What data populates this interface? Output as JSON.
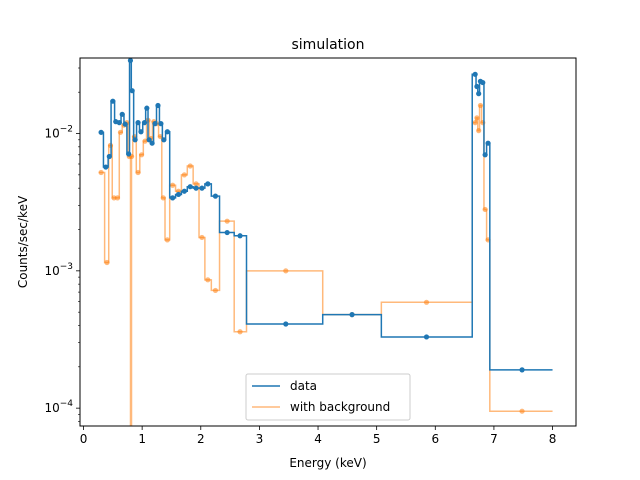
{
  "chart_data": {
    "type": "line",
    "title": "simulation",
    "xlabel": "Energy (keV)",
    "ylabel": "Counts/sec/keV",
    "xlim": [
      -0.06,
      8.4
    ],
    "ylim_log10": [
      -4.13,
      -1.45
    ],
    "x_ticks": [
      0,
      1,
      2,
      3,
      4,
      5,
      6,
      7,
      8
    ],
    "x_tick_labels": [
      "0",
      "1",
      "2",
      "3",
      "4",
      "5",
      "6",
      "7",
      "8"
    ],
    "y_ticks": [
      0.0001,
      0.001,
      0.01
    ],
    "y_tick_labels": [
      "10",
      "10",
      "10"
    ],
    "y_tick_exponents": [
      "−4",
      "−3",
      "−2"
    ],
    "legend": {
      "position": "lower-center",
      "entries": [
        "data",
        "with background"
      ]
    },
    "series": [
      {
        "name": "data",
        "color": "#1f77b4",
        "points": [
          [
            0.3,
            0.0102
          ],
          [
            0.38,
            0.0057
          ],
          [
            0.44,
            0.0068
          ],
          [
            0.5,
            0.0172
          ],
          [
            0.55,
            0.0122
          ],
          [
            0.61,
            0.012
          ],
          [
            0.66,
            0.0138
          ],
          [
            0.71,
            0.0117
          ],
          [
            0.77,
            0.0071
          ],
          [
            0.8,
            0.034
          ],
          [
            0.83,
            0.0205
          ],
          [
            0.88,
            0.009
          ],
          [
            0.93,
            0.012
          ],
          [
            0.98,
            0.0103
          ],
          [
            1.04,
            0.012
          ],
          [
            1.08,
            0.0153
          ],
          [
            1.12,
            0.009
          ],
          [
            1.17,
            0.0085
          ],
          [
            1.22,
            0.0118
          ],
          [
            1.27,
            0.016
          ],
          [
            1.32,
            0.0118
          ],
          [
            1.37,
            0.009
          ],
          [
            1.43,
            0.0103
          ],
          [
            1.52,
            0.0034
          ],
          [
            1.62,
            0.0036
          ],
          [
            1.72,
            0.0038
          ],
          [
            1.82,
            0.0041
          ],
          [
            1.92,
            0.004
          ],
          [
            2.02,
            0.004
          ],
          [
            2.12,
            0.0043
          ],
          [
            2.25,
            0.0035
          ],
          [
            2.45,
            0.0019
          ],
          [
            2.67,
            0.0018
          ],
          [
            3.45,
            0.00041
          ],
          [
            4.58,
            0.00048
          ],
          [
            5.85,
            0.00033
          ],
          [
            6.68,
            0.027
          ],
          [
            6.71,
            0.022
          ],
          [
            6.74,
            0.0195
          ],
          [
            6.77,
            0.024
          ],
          [
            6.81,
            0.0235
          ],
          [
            6.85,
            0.007
          ],
          [
            6.9,
            0.0085
          ],
          [
            7.48,
            0.00019
          ]
        ]
      },
      {
        "name": "with background",
        "color": "#ff7f0e",
        "points": [
          [
            0.3,
            0.0052
          ],
          [
            0.4,
            0.00115
          ],
          [
            0.46,
            0.0082
          ],
          [
            0.52,
            0.0034
          ],
          [
            0.58,
            0.0034
          ],
          [
            0.63,
            0.0102
          ],
          [
            0.69,
            0.0115
          ],
          [
            0.74,
            0.012
          ],
          [
            0.78,
            0.0068
          ],
          [
            0.82,
            0.0068
          ],
          [
            0.87,
            0.0095
          ],
          [
            0.93,
            0.0052
          ],
          [
            0.99,
            0.007
          ],
          [
            1.05,
            0.0088
          ],
          [
            1.1,
            0.0125
          ],
          [
            1.15,
            0.0092
          ],
          [
            1.2,
            0.0122
          ],
          [
            1.25,
            0.0118
          ],
          [
            1.31,
            0.0095
          ],
          [
            1.36,
            0.0034
          ],
          [
            1.43,
            0.00168
          ],
          [
            1.52,
            0.0042
          ],
          [
            1.62,
            0.0038
          ],
          [
            1.72,
            0.005
          ],
          [
            1.82,
            0.0058
          ],
          [
            1.92,
            0.0043
          ],
          [
            2.02,
            0.00175
          ],
          [
            2.12,
            0.00086
          ],
          [
            2.25,
            0.00072
          ],
          [
            2.45,
            0.0023
          ],
          [
            2.67,
            0.00036
          ],
          [
            3.45,
            0.001
          ],
          [
            4.58,
            0.00048
          ],
          [
            5.85,
            0.00059
          ],
          [
            6.68,
            0.012
          ],
          [
            6.71,
            0.013
          ],
          [
            6.74,
            0.0105
          ],
          [
            6.77,
            0.016
          ],
          [
            6.81,
            0.012
          ],
          [
            6.85,
            0.0028
          ],
          [
            6.9,
            0.00168
          ],
          [
            7.48,
            9.5e-05
          ]
        ],
        "spike": {
          "x": 0.81,
          "down_from": 0.0068
        }
      }
    ],
    "edges": {
      "data": [
        0.26,
        0.34,
        0.42,
        0.47,
        0.53,
        0.58,
        0.64,
        0.69,
        0.74,
        0.785,
        0.815,
        0.855,
        0.905,
        0.955,
        1.01,
        1.06,
        1.1,
        1.145,
        1.195,
        1.245,
        1.295,
        1.345,
        1.4,
        1.47,
        1.57,
        1.67,
        1.77,
        1.87,
        1.97,
        2.07,
        2.18,
        2.32,
        2.57,
        2.78,
        4.08,
        5.08,
        6.63,
        6.695,
        6.725,
        6.755,
        6.79,
        6.83,
        6.875,
        6.93,
        8.0
      ],
      "with background": [
        0.26,
        0.36,
        0.43,
        0.49,
        0.55,
        0.61,
        0.66,
        0.715,
        0.76,
        0.8,
        0.84,
        0.9,
        0.96,
        1.02,
        1.075,
        1.125,
        1.175,
        1.225,
        1.28,
        1.335,
        1.39,
        1.47,
        1.57,
        1.67,
        1.77,
        1.87,
        1.97,
        2.07,
        2.18,
        2.32,
        2.57,
        2.78,
        4.08,
        5.08,
        6.63,
        6.695,
        6.725,
        6.755,
        6.79,
        6.83,
        6.875,
        6.93,
        8.0
      ]
    }
  }
}
